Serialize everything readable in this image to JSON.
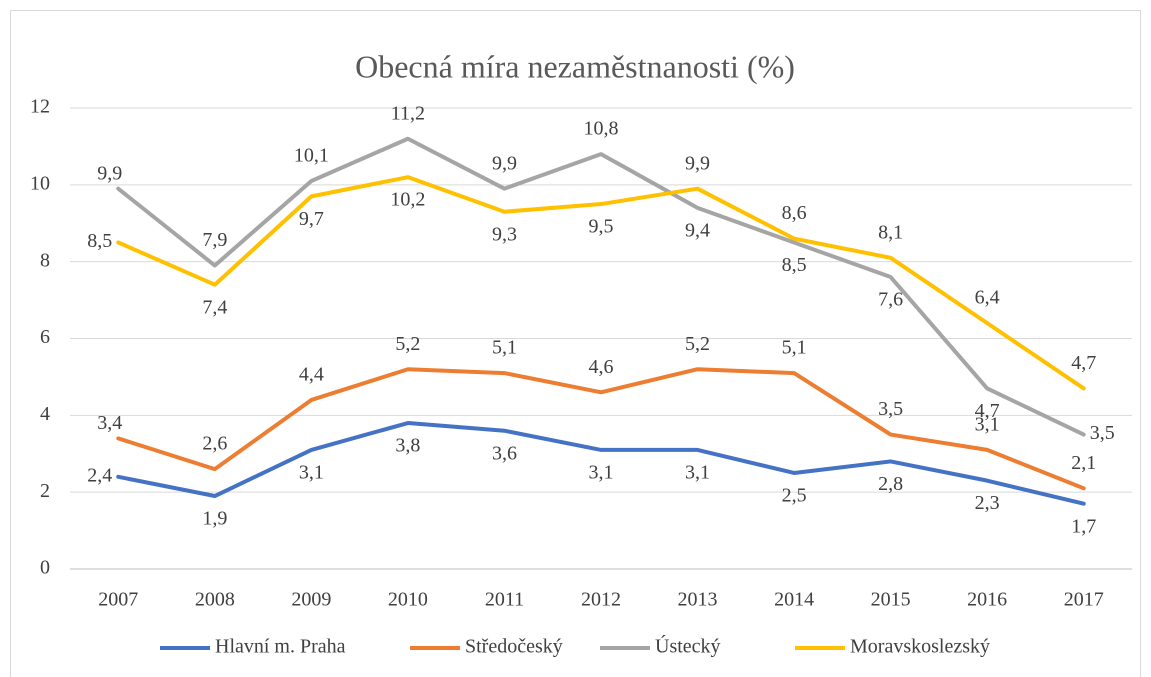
{
  "chart_data": {
    "type": "line",
    "title": "Obecná míra nezaměstnanosti (%)",
    "categories": [
      "2007",
      "2008",
      "2009",
      "2010",
      "2011",
      "2012",
      "2013",
      "2014",
      "2015",
      "2016",
      "2017"
    ],
    "ylim": [
      0,
      12
    ],
    "yticks": [
      0,
      2,
      4,
      6,
      8,
      10,
      12
    ],
    "grid": true,
    "legend": "bottom",
    "series": [
      {
        "name": "Hlavní m. Praha",
        "color": "#4472c4",
        "values": [
          2.4,
          1.9,
          3.1,
          3.8,
          3.6,
          3.1,
          3.1,
          2.5,
          2.8,
          2.3,
          1.7
        ],
        "value_labels": [
          "2,4",
          "1,9",
          "3,1",
          "3,8",
          "3,6",
          "3,1",
          "3,1",
          "2,5",
          "2,8",
          "2,3",
          "1,7"
        ]
      },
      {
        "name": "Středočeský",
        "color": "#ed7d31",
        "values": [
          3.4,
          2.6,
          4.4,
          5.2,
          5.1,
          4.6,
          5.2,
          5.1,
          3.5,
          3.1,
          2.1
        ],
        "value_labels": [
          "3,4",
          "2,6",
          "4,4",
          "5,2",
          "5,1",
          "4,6",
          "5,2",
          "5,1",
          "3,5",
          "3,1",
          "2,1"
        ]
      },
      {
        "name": "Ústecký",
        "color": "#a5a5a5",
        "values": [
          9.9,
          7.9,
          10.1,
          11.2,
          9.9,
          10.8,
          9.4,
          8.5,
          7.6,
          4.7,
          3.5
        ],
        "value_labels": [
          "9,9",
          "7,9",
          "10,1",
          "11,2",
          "9,9",
          "10,8",
          "9,4",
          "8,5",
          "7,6",
          "4,7",
          "3,5"
        ]
      },
      {
        "name": "Moravskoslezský",
        "color": "#ffc000",
        "values": [
          8.5,
          7.4,
          9.7,
          10.2,
          9.3,
          9.5,
          9.9,
          8.6,
          8.1,
          6.4,
          4.7
        ],
        "value_labels": [
          "8,5",
          "7,4",
          "9,7",
          "10,2",
          "9,3",
          "9,5",
          "9,9",
          "8,6",
          "8,1",
          "6,4",
          "4,7"
        ]
      }
    ]
  }
}
